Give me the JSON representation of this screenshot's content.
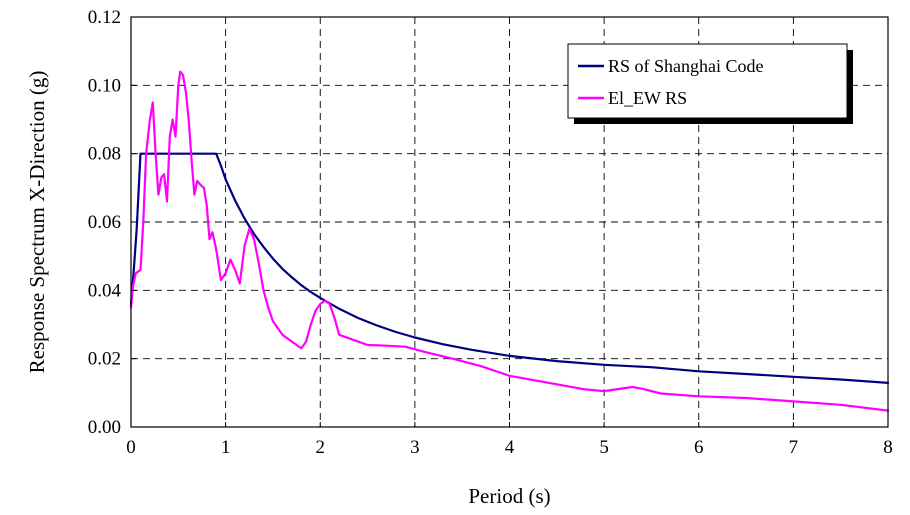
{
  "chart_data": {
    "type": "line",
    "xlabel": "Period (s)",
    "ylabel": "Response Spectrum X-Direction (g)",
    "xlim": [
      0,
      8
    ],
    "ylim": [
      0,
      0.12
    ],
    "x_ticks": [
      "0",
      "1",
      "2",
      "3",
      "4",
      "5",
      "6",
      "7",
      "8"
    ],
    "y_ticks": [
      "0.00",
      "0.02",
      "0.04",
      "0.06",
      "0.08",
      "0.10",
      "0.12"
    ],
    "grid": true,
    "legend_position": "top-right",
    "series": [
      {
        "name": "RS of Shanghai Code",
        "color": "#000080",
        "points": [
          [
            0.0,
            0.036
          ],
          [
            0.03,
            0.046
          ],
          [
            0.06,
            0.058
          ],
          [
            0.1,
            0.08
          ],
          [
            0.2,
            0.08
          ],
          [
            0.4,
            0.08
          ],
          [
            0.6,
            0.08
          ],
          [
            0.8,
            0.08
          ],
          [
            0.9,
            0.08
          ],
          [
            0.95,
            0.0765
          ],
          [
            1.0,
            0.0725
          ],
          [
            1.1,
            0.0663
          ],
          [
            1.2,
            0.061
          ],
          [
            1.3,
            0.0565
          ],
          [
            1.4,
            0.0527
          ],
          [
            1.5,
            0.0493
          ],
          [
            1.6,
            0.0463
          ],
          [
            1.7,
            0.0438
          ],
          [
            1.8,
            0.0415
          ],
          [
            1.9,
            0.0395
          ],
          [
            2.0,
            0.0378
          ],
          [
            2.2,
            0.0346
          ],
          [
            2.4,
            0.0319
          ],
          [
            2.6,
            0.0297
          ],
          [
            2.8,
            0.0278
          ],
          [
            3.0,
            0.0262
          ],
          [
            3.3,
            0.0242
          ],
          [
            3.6,
            0.0226
          ],
          [
            4.0,
            0.0208
          ],
          [
            4.5,
            0.0193
          ],
          [
            5.0,
            0.0182
          ],
          [
            5.5,
            0.0175
          ],
          [
            6.0,
            0.0163
          ],
          [
            6.5,
            0.0155
          ],
          [
            7.0,
            0.0147
          ],
          [
            7.5,
            0.0139
          ],
          [
            8.0,
            0.0129
          ]
        ]
      },
      {
        "name": "El_EW RS",
        "color": "#ff00ff",
        "points": [
          [
            0.0,
            0.035
          ],
          [
            0.02,
            0.041
          ],
          [
            0.05,
            0.045
          ],
          [
            0.1,
            0.046
          ],
          [
            0.13,
            0.06
          ],
          [
            0.16,
            0.08
          ],
          [
            0.2,
            0.09
          ],
          [
            0.23,
            0.095
          ],
          [
            0.26,
            0.08
          ],
          [
            0.29,
            0.068
          ],
          [
            0.32,
            0.073
          ],
          [
            0.35,
            0.074
          ],
          [
            0.38,
            0.066
          ],
          [
            0.41,
            0.085
          ],
          [
            0.44,
            0.09
          ],
          [
            0.47,
            0.085
          ],
          [
            0.5,
            0.1
          ],
          [
            0.52,
            0.104
          ],
          [
            0.55,
            0.103
          ],
          [
            0.58,
            0.098
          ],
          [
            0.61,
            0.09
          ],
          [
            0.64,
            0.078
          ],
          [
            0.67,
            0.068
          ],
          [
            0.7,
            0.072
          ],
          [
            0.73,
            0.071
          ],
          [
            0.77,
            0.07
          ],
          [
            0.8,
            0.065
          ],
          [
            0.83,
            0.055
          ],
          [
            0.86,
            0.057
          ],
          [
            0.9,
            0.052
          ],
          [
            0.95,
            0.043
          ],
          [
            1.0,
            0.045
          ],
          [
            1.05,
            0.049
          ],
          [
            1.1,
            0.046
          ],
          [
            1.15,
            0.042
          ],
          [
            1.2,
            0.053
          ],
          [
            1.25,
            0.058
          ],
          [
            1.3,
            0.055
          ],
          [
            1.35,
            0.048
          ],
          [
            1.4,
            0.04
          ],
          [
            1.45,
            0.035
          ],
          [
            1.5,
            0.031
          ],
          [
            1.6,
            0.027
          ],
          [
            1.7,
            0.025
          ],
          [
            1.8,
            0.023
          ],
          [
            1.85,
            0.025
          ],
          [
            1.9,
            0.03
          ],
          [
            1.95,
            0.034
          ],
          [
            2.0,
            0.036
          ],
          [
            2.05,
            0.037
          ],
          [
            2.1,
            0.036
          ],
          [
            2.15,
            0.032
          ],
          [
            2.2,
            0.027
          ],
          [
            2.3,
            0.026
          ],
          [
            2.5,
            0.024
          ],
          [
            2.7,
            0.0238
          ],
          [
            2.9,
            0.0235
          ],
          [
            3.1,
            0.022
          ],
          [
            3.4,
            0.02
          ],
          [
            3.7,
            0.0178
          ],
          [
            4.0,
            0.015
          ],
          [
            4.5,
            0.0125
          ],
          [
            4.8,
            0.011
          ],
          [
            5.0,
            0.0105
          ],
          [
            5.2,
            0.0113
          ],
          [
            5.3,
            0.0117
          ],
          [
            5.4,
            0.0112
          ],
          [
            5.6,
            0.0098
          ],
          [
            6.0,
            0.009
          ],
          [
            6.5,
            0.0085
          ],
          [
            7.0,
            0.0075
          ],
          [
            7.5,
            0.0065
          ],
          [
            8.0,
            0.0048
          ]
        ]
      }
    ]
  }
}
